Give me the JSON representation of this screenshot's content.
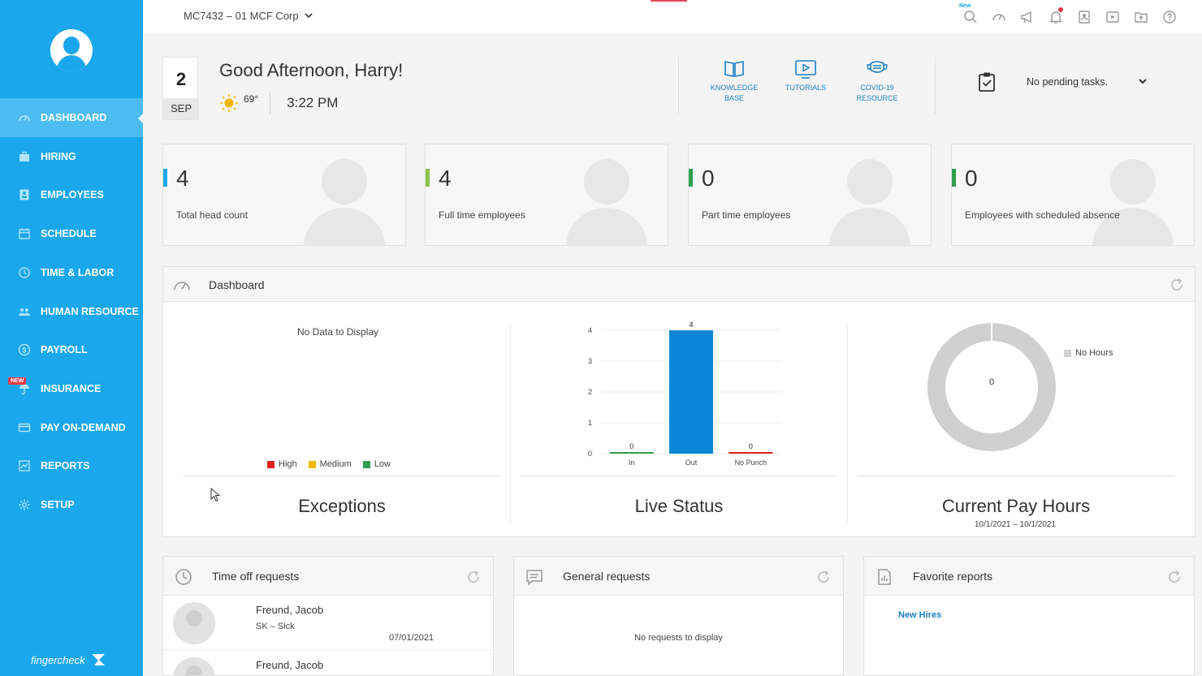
{
  "sidebar": {
    "items": [
      {
        "label": "DASHBOARD",
        "icon": "dashboard-icon",
        "active": true
      },
      {
        "label": "HIRING",
        "icon": "briefcase-icon"
      },
      {
        "label": "EMPLOYEES",
        "icon": "id-card-icon"
      },
      {
        "label": "SCHEDULE",
        "icon": "calendar-icon"
      },
      {
        "label": "TIME & LABOR",
        "icon": "clock-icon"
      },
      {
        "label": "HUMAN RESOURCE",
        "icon": "people-icon"
      },
      {
        "label": "PAYROLL",
        "icon": "dollar-icon"
      },
      {
        "label": "INSURANCE",
        "icon": "umbrella-icon"
      },
      {
        "label": "PAY ON-DEMAND",
        "icon": "card-icon"
      },
      {
        "label": "REPORTS",
        "icon": "chart-icon"
      },
      {
        "label": "SETUP",
        "icon": "gear-icon"
      }
    ],
    "insurance_badge": "NEW",
    "brand": "fingercheck"
  },
  "topbar": {
    "company": "MC7432 – 01 MCF Corp",
    "new_label": "New"
  },
  "greeting": {
    "day": "2",
    "month": "SEP",
    "text": "Good Afternoon, Harry!",
    "temperature": "69°",
    "time": "3:22 PM"
  },
  "quick_links": [
    {
      "label": "KNOWLEDGE BASE",
      "icon": "book-icon"
    },
    {
      "label": "TUTORIALS",
      "icon": "video-icon"
    },
    {
      "label": "COVID-19 RESOURCE",
      "icon": "mask-icon"
    }
  ],
  "tasks": {
    "text": "No pending tasks."
  },
  "stats": [
    {
      "value": "4",
      "label": "Total head count",
      "color": "#1aa7ec"
    },
    {
      "value": "4",
      "label": "Full time employees",
      "color": "#8bc34a"
    },
    {
      "value": "0",
      "label": "Part time employees",
      "color": "#2e9e4f"
    },
    {
      "value": "0",
      "label": "Employees with scheduled absence",
      "color": "#2e9e4f"
    }
  ],
  "dashboard": {
    "title": "Dashboard",
    "exceptions": {
      "title": "Exceptions",
      "no_data": "No Data to Display",
      "legend": [
        {
          "label": "High",
          "color": "#e02020"
        },
        {
          "label": "Medium",
          "color": "#f5b800"
        },
        {
          "label": "Low",
          "color": "#2e9e4f"
        }
      ]
    },
    "live_status": {
      "title": "Live Status"
    },
    "pay_hours": {
      "title": "Current Pay Hours",
      "date_range": "10/1/2021 – 10/1/2021",
      "center_value": "0",
      "legend": "No Hours"
    }
  },
  "chart_data": [
    {
      "type": "bar",
      "categories": [
        "In",
        "Out",
        "No Punch"
      ],
      "values": [
        0,
        4,
        0
      ],
      "colors": [
        "#2e9e4f",
        "#0b86d6",
        "#e02020"
      ],
      "ylim": [
        0,
        4
      ],
      "yticks": [
        0,
        1,
        2,
        3,
        4
      ],
      "grid": true
    },
    {
      "type": "pie",
      "labels": [
        "No Hours"
      ],
      "values": [
        1
      ],
      "colors": [
        "#d0d0d0"
      ],
      "legend": "right"
    }
  ],
  "panels": {
    "time_off": {
      "title": "Time off requests",
      "requests": [
        {
          "name": "Freund, Jacob",
          "type": "SK – Sick",
          "date": "07/01/2021"
        },
        {
          "name": "Freund, Jacob",
          "type": "",
          "date": ""
        }
      ]
    },
    "general": {
      "title": "General requests",
      "empty": "No requests to display"
    },
    "favorites": {
      "title": "Favorite reports",
      "links": [
        "New Hires"
      ]
    }
  }
}
